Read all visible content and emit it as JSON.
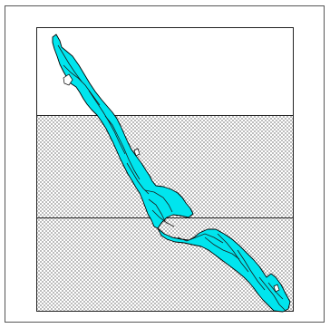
{
  "map": {
    "colors": {
      "background": "#ffffff",
      "frame": "#555555",
      "map_border": "#222222",
      "shaded_zone_fill": "#9a9a9a",
      "river_fill": "#00e5ee",
      "river_stroke": "#000000",
      "channel_line": "#1a1a1a"
    },
    "layers": [
      {
        "name": "unshaded-top-zone",
        "shading": "none"
      },
      {
        "name": "shaded-middle-zone",
        "shading": "dot-stipple"
      },
      {
        "name": "shaded-bottom-zone",
        "shading": "dot-stipple"
      },
      {
        "name": "river-channel",
        "shading": "solid cyan"
      }
    ],
    "zone_count": 3
  }
}
